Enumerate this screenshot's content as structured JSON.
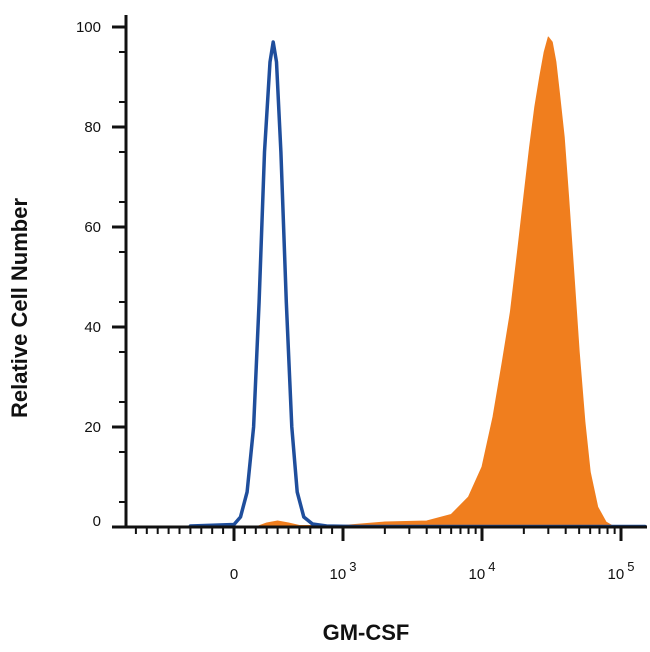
{
  "chart_data": {
    "type": "area",
    "xlabel": "GM-CSF",
    "ylabel": "Relative Cell Number",
    "xscale": "biexponential (linear near 0, log above 10^3)",
    "ylim": [
      0,
      100
    ],
    "yticks": [
      0,
      20,
      40,
      60,
      80,
      100
    ],
    "xticks": [
      {
        "value": 0,
        "label": "0"
      },
      {
        "value": 1000,
        "base": "10",
        "exp": "3"
      },
      {
        "value": 10000,
        "base": "10",
        "exp": "4"
      },
      {
        "value": 100000,
        "base": "10",
        "exp": "5"
      }
    ],
    "grid": false,
    "legend": "none",
    "series": [
      {
        "style": "outline",
        "color": "#1f4e9c",
        "points": [
          [
            -400,
            0.2
          ],
          [
            0,
            0.5
          ],
          [
            60,
            2
          ],
          [
            120,
            7
          ],
          [
            180,
            20
          ],
          [
            230,
            45
          ],
          [
            280,
            75
          ],
          [
            330,
            93
          ],
          [
            360,
            97
          ],
          [
            390,
            93
          ],
          [
            430,
            75
          ],
          [
            480,
            45
          ],
          [
            530,
            20
          ],
          [
            580,
            7
          ],
          [
            640,
            2
          ],
          [
            720,
            0.6
          ],
          [
            850,
            0.2
          ],
          [
            1200,
            0.1
          ],
          [
            100000,
            0.1
          ],
          [
            170000,
            0.1
          ]
        ]
      },
      {
        "style": "filled",
        "color": "#f07e1e",
        "points": [
          [
            -400,
            0
          ],
          [
            200,
            0
          ],
          [
            300,
            0.8
          ],
          [
            400,
            1.2
          ],
          [
            500,
            0.8
          ],
          [
            600,
            0.3
          ],
          [
            1000,
            0.3
          ],
          [
            2000,
            1
          ],
          [
            4000,
            1.2
          ],
          [
            6000,
            2.5
          ],
          [
            8000,
            6
          ],
          [
            10000,
            12
          ],
          [
            12000,
            22
          ],
          [
            14000,
            33
          ],
          [
            16000,
            43
          ],
          [
            18000,
            55
          ],
          [
            20000,
            66
          ],
          [
            22000,
            76
          ],
          [
            24000,
            84
          ],
          [
            26000,
            90
          ],
          [
            28000,
            95
          ],
          [
            30000,
            98
          ],
          [
            32000,
            97
          ],
          [
            34000,
            93
          ],
          [
            36000,
            87
          ],
          [
            39000,
            78
          ],
          [
            42000,
            66
          ],
          [
            46000,
            50
          ],
          [
            50000,
            35
          ],
          [
            55000,
            21
          ],
          [
            60000,
            11
          ],
          [
            68000,
            4
          ],
          [
            78000,
            1
          ],
          [
            90000,
            0
          ],
          [
            170000,
            0
          ]
        ]
      }
    ]
  }
}
